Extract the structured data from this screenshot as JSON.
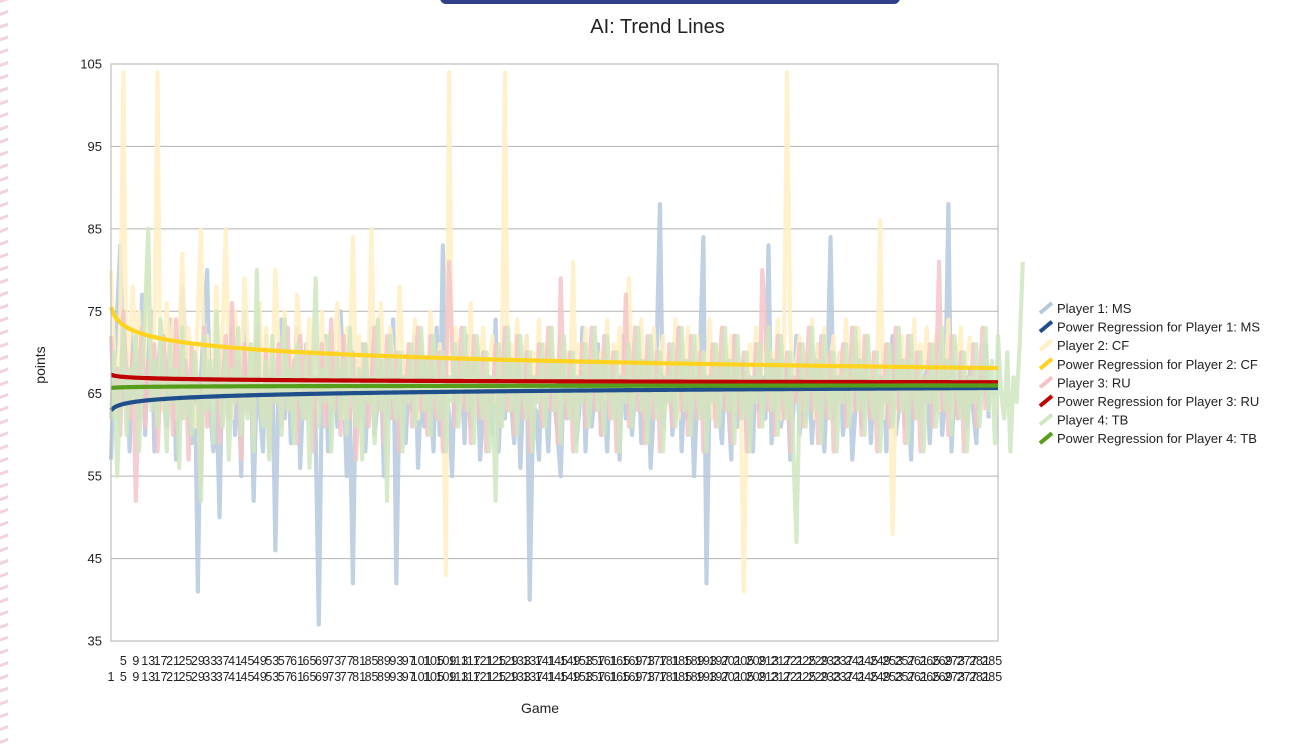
{
  "chart_data": {
    "type": "line",
    "title": "AI: Trend Lines",
    "xlabel": "Game",
    "ylabel": "points",
    "ylim": [
      35,
      105
    ],
    "yticks": [
      35,
      45,
      55,
      65,
      75,
      85,
      95,
      105
    ],
    "xlim": [
      1,
      287
    ],
    "xtick_step": 4,
    "grid": true,
    "legend_position": "right",
    "series": [
      {
        "name": "Player 1: MS",
        "color": "#b4c9de",
        "values": [
          57,
          68,
          75,
          83,
          64,
          70,
          58,
          73,
          69,
          62,
          77,
          60,
          70,
          75,
          58,
          67,
          72,
          64,
          61,
          74,
          69,
          57,
          66,
          78,
          71,
          63,
          59,
          70,
          41,
          67,
          74,
          80,
          63,
          58,
          65,
          50,
          71,
          66,
          62,
          73,
          60,
          68,
          55,
          75,
          64,
          70,
          52,
          67,
          63,
          58,
          72,
          61,
          69,
          46,
          66,
          74,
          62,
          70,
          59,
          67,
          73,
          56,
          65,
          71,
          63,
          69,
          60,
          37,
          66,
          72,
          58,
          64,
          70,
          61,
          75,
          67,
          55,
          63,
          42,
          69,
          62,
          71,
          58,
          66,
          73,
          60,
          64,
          69,
          55,
          68,
          62,
          74,
          42,
          65,
          70,
          59,
          67,
          63,
          72,
          56,
          66,
          61,
          69,
          64,
          58,
          73,
          60,
          83,
          67,
          62,
          55,
          70,
          64,
          68,
          59,
          72,
          61,
          66,
          70,
          57,
          63,
          69,
          65,
          60,
          74,
          58,
          67,
          62,
          71,
          64,
          59,
          68,
          56,
          66,
          72,
          40,
          61,
          63,
          57,
          69,
          65,
          58,
          71,
          64,
          60,
          55,
          67,
          62,
          70,
          66,
          59,
          63,
          73,
          58,
          68,
          61,
          65,
          71,
          60,
          64,
          58,
          69,
          63,
          66,
          57,
          72,
          62,
          67,
          60,
          65,
          70,
          59,
          64,
          68,
          56,
          63,
          71,
          88,
          61,
          66,
          69,
          60,
          64,
          73,
          58,
          67,
          62,
          68,
          55,
          65,
          71,
          84,
          42,
          66,
          62,
          70,
          63,
          59,
          68,
          64,
          57,
          72,
          61,
          66,
          69,
          60,
          64,
          58,
          71,
          63,
          67,
          62,
          83,
          59,
          66,
          70,
          61,
          64,
          68,
          57,
          63,
          72,
          60,
          65,
          62,
          69,
          59,
          66,
          71,
          64,
          58,
          67,
          84,
          62,
          66,
          70,
          60,
          64,
          68,
          57,
          63,
          71,
          61,
          65,
          69,
          59,
          67,
          62,
          64,
          70,
          58,
          66,
          72,
          60,
          63,
          68,
          61,
          65,
          57,
          70,
          62,
          66,
          64,
          69,
          59,
          67,
          63,
          71,
          60,
          65,
          88,
          58,
          66,
          62,
          70,
          64,
          61,
          68,
          63,
          59,
          67,
          65,
          71,
          62
        ]
      },
      {
        "name": "Player 2: CF",
        "color": "#ffeec2",
        "values": [
          80,
          70,
          62,
          74,
          104,
          66,
          72,
          78,
          69,
          75,
          65,
          71,
          80,
          67,
          73,
          104,
          63,
          70,
          76,
          68,
          74,
          62,
          71,
          82,
          66,
          73,
          69,
          61,
          75,
          85,
          67,
          72,
          64,
          70,
          78,
          66,
          73,
          85,
          68,
          62,
          75,
          70,
          66,
          79,
          72,
          64,
          71,
          68,
          76,
          62,
          73,
          69,
          66,
          80,
          71,
          63,
          75,
          68,
          70,
          65,
          77,
          72,
          66,
          69,
          74,
          63,
          71,
          68,
          75,
          66,
          72,
          64,
          70,
          76,
          68,
          62,
          73,
          69,
          84,
          66,
          72,
          64,
          71,
          67,
          85,
          63,
          70,
          76,
          68,
          65,
          73,
          69,
          66,
          78,
          70,
          64,
          71,
          67,
          74,
          62,
          72,
          68,
          66,
          75,
          69,
          63,
          71,
          65,
          43,
          104,
          67,
          73,
          69,
          64,
          70,
          66,
          76,
          62,
          71,
          68,
          73,
          65,
          69,
          72,
          64,
          70,
          67,
          104,
          63,
          71,
          68,
          74,
          65,
          69,
          72,
          63,
          70,
          66,
          74,
          62,
          71,
          68,
          73,
          65,
          69,
          72,
          64,
          70,
          66,
          81,
          62,
          71,
          68,
          73,
          65,
          69,
          72,
          63,
          70,
          66,
          74,
          62,
          71,
          68,
          73,
          65,
          69,
          79,
          64,
          70,
          66,
          74,
          62,
          71,
          68,
          73,
          65,
          69,
          72,
          63,
          70,
          66,
          74,
          62,
          71,
          68,
          73,
          65,
          69,
          72,
          64,
          70,
          66,
          74,
          62,
          71,
          68,
          73,
          65,
          69,
          72,
          63,
          70,
          66,
          41,
          62,
          71,
          68,
          73,
          65,
          69,
          72,
          64,
          70,
          66,
          74,
          62,
          71,
          104,
          73,
          65,
          69,
          72,
          63,
          70,
          66,
          74,
          62,
          71,
          68,
          73,
          65,
          69,
          72,
          64,
          70,
          66,
          74,
          62,
          71,
          68,
          73,
          65,
          69,
          72,
          63,
          70,
          66,
          86,
          62,
          71,
          68,
          48,
          65,
          69,
          72,
          64,
          70,
          66,
          74,
          62,
          71,
          68,
          73,
          65,
          69,
          72,
          63,
          70,
          66,
          74,
          62,
          71,
          68,
          73,
          65,
          69,
          72
        ]
      },
      {
        "name": "Player 3: RU",
        "color": "#f4c4c8",
        "values": [
          72,
          64,
          68,
          60,
          75,
          66,
          62,
          70,
          52,
          67,
          73,
          61,
          69,
          64,
          71,
          58,
          66,
          72,
          63,
          68,
          60,
          74,
          65,
          62,
          69,
          57,
          71,
          64,
          67,
          54,
          73,
          61,
          68,
          65,
          70,
          59,
          66,
          72,
          62,
          76,
          64,
          69,
          57,
          71,
          63,
          67,
          60,
          73,
          65,
          62,
          70,
          58,
          68,
          64,
          71,
          61,
          66,
          73,
          63,
          69,
          59,
          72,
          65,
          62,
          70,
          58,
          67,
          64,
          71,
          61,
          66,
          74,
          63,
          69,
          60,
          72,
          65,
          62,
          70,
          57,
          67,
          64,
          71,
          61,
          66,
          73,
          63,
          69,
          59,
          72,
          65,
          62,
          70,
          58,
          67,
          64,
          71,
          61,
          66,
          73,
          63,
          69,
          60,
          72,
          65,
          62,
          70,
          58,
          67,
          81,
          71,
          61,
          66,
          73,
          63,
          69,
          59,
          72,
          65,
          62,
          70,
          58,
          67,
          64,
          71,
          61,
          66,
          73,
          63,
          69,
          60,
          72,
          65,
          62,
          70,
          58,
          67,
          64,
          71,
          61,
          66,
          73,
          63,
          69,
          59,
          79,
          65,
          62,
          70,
          58,
          67,
          64,
          71,
          61,
          66,
          73,
          63,
          69,
          60,
          72,
          65,
          62,
          70,
          58,
          67,
          64,
          77,
          61,
          66,
          73,
          63,
          69,
          59,
          72,
          65,
          62,
          70,
          58,
          67,
          64,
          71,
          61,
          66,
          73,
          63,
          69,
          60,
          72,
          65,
          62,
          70,
          58,
          67,
          64,
          71,
          61,
          66,
          73,
          63,
          69,
          59,
          72,
          65,
          62,
          70,
          58,
          67,
          64,
          71,
          61,
          80,
          73,
          63,
          69,
          60,
          72,
          65,
          62,
          70,
          58,
          67,
          64,
          71,
          61,
          66,
          73,
          63,
          69,
          59,
          72,
          65,
          62,
          70,
          58,
          67,
          64,
          71,
          61,
          66,
          73,
          63,
          69,
          60,
          72,
          65,
          62,
          70,
          58,
          67,
          64,
          71,
          61,
          66,
          73,
          63,
          69,
          59,
          72,
          65,
          62,
          70,
          58,
          67,
          64,
          71,
          61,
          66,
          81,
          63,
          69,
          60,
          72,
          65,
          62,
          70,
          58,
          67,
          64,
          71,
          61,
          66,
          73,
          63
        ]
      },
      {
        "name": "Player 4: TB",
        "color": "#cfe6c0",
        "values": [
          62,
          70,
          55,
          66,
          73,
          60,
          68,
          64,
          72,
          58,
          67,
          75,
          85,
          63,
          69,
          61,
          74,
          66,
          58,
          71,
          64,
          68,
          56,
          73,
          62,
          67,
          60,
          70,
          65,
          52,
          72,
          63,
          69,
          59,
          75,
          66,
          61,
          70,
          57,
          68,
          64,
          73,
          60,
          67,
          62,
          71,
          58,
          80,
          65,
          61,
          69,
          57,
          72,
          64,
          67,
          60,
          74,
          63,
          68,
          59,
          71,
          65,
          62,
          70,
          56,
          67,
          79,
          61,
          68,
          64,
          72,
          58,
          66,
          70,
          62,
          69,
          60,
          73,
          65,
          61,
          68,
          57,
          71,
          64,
          67,
          59,
          74,
          63,
          69,
          52,
          72,
          65,
          62,
          70,
          58,
          67,
          64,
          71,
          61,
          66,
          73,
          63,
          69,
          60,
          72,
          65,
          62,
          70,
          58,
          67,
          64,
          71,
          61,
          66,
          73,
          63,
          69,
          59,
          72,
          65,
          62,
          70,
          58,
          67,
          52,
          71,
          61,
          66,
          73,
          63,
          69,
          60,
          72,
          65,
          62,
          70,
          58,
          67,
          64,
          71,
          61,
          66,
          73,
          63,
          69,
          59,
          72,
          65,
          62,
          70,
          58,
          67,
          64,
          71,
          61,
          66,
          73,
          63,
          69,
          60,
          72,
          65,
          62,
          70,
          58,
          67,
          64,
          71,
          61,
          66,
          73,
          63,
          69,
          59,
          72,
          65,
          62,
          70,
          58,
          67,
          64,
          71,
          61,
          66,
          73,
          63,
          69,
          60,
          72,
          65,
          62,
          70,
          58,
          67,
          64,
          71,
          61,
          66,
          73,
          63,
          69,
          59,
          72,
          65,
          62,
          70,
          58,
          67,
          64,
          71,
          61,
          66,
          73,
          63,
          69,
          60,
          72,
          65,
          62,
          70,
          58,
          47,
          64,
          71,
          61,
          66,
          73,
          63,
          69,
          59,
          72,
          65,
          62,
          70,
          58,
          67,
          64,
          71,
          61,
          66,
          73,
          63,
          69,
          60,
          72,
          65,
          62,
          70,
          58,
          67,
          64,
          71,
          61,
          66,
          73,
          63,
          69,
          59,
          72,
          65,
          62,
          70,
          58,
          67,
          64,
          71,
          61,
          66,
          73,
          63,
          69,
          60,
          72,
          65,
          62,
          70,
          58,
          67,
          64,
          71,
          61,
          66,
          73,
          63,
          69,
          59,
          72,
          65,
          62,
          70,
          58,
          67,
          64,
          71,
          81
        ]
      }
    ],
    "trendlines": [
      {
        "name": "Power Regression for Player 1: MS",
        "color": "#1f4e8c",
        "a": 63.0,
        "b": 0.0074
      },
      {
        "name": "Power Regression for Player 2: CF",
        "color": "#ffd320",
        "a": 75.5,
        "b": -0.0182
      },
      {
        "name": "Power Regression for Player 3: RU",
        "color": "#c00000",
        "a": 67.3,
        "b": -0.0024
      },
      {
        "name": "Power Regression for Player 4: TB",
        "color": "#579d1c",
        "a": 65.7,
        "b": 0.0008
      }
    ]
  }
}
